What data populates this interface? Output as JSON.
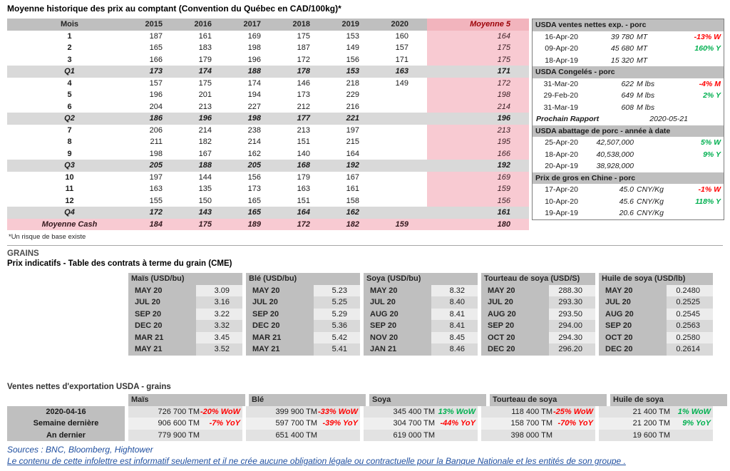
{
  "colors": {
    "header_gray": "#bfbfbf",
    "band_gray": "#d9d9d9",
    "pink_column": "#f8cad2",
    "pink_header": "#f2b4bd",
    "negative_red": "#ff0000",
    "positive_green": "#00b050",
    "footer_blue": "#1f4fa0"
  },
  "spot_prices": {
    "title": "Moyenne historique des prix au comptant (Convention du Québec en CAD/100kg)*",
    "footnote": "*Un risque de base existe",
    "headers": [
      "Mois",
      "2015",
      "2016",
      "2017",
      "2018",
      "2019",
      "2020",
      "Moyenne 5"
    ],
    "rows": [
      {
        "type": "month",
        "label": "1",
        "values": [
          "187",
          "161",
          "169",
          "175",
          "153",
          "160",
          "164"
        ]
      },
      {
        "type": "month",
        "label": "2",
        "values": [
          "165",
          "183",
          "198",
          "187",
          "149",
          "157",
          "175"
        ]
      },
      {
        "type": "month",
        "label": "3",
        "values": [
          "166",
          "179",
          "196",
          "172",
          "156",
          "171",
          "175"
        ]
      },
      {
        "type": "quarter",
        "label": "Q1",
        "values": [
          "173",
          "174",
          "188",
          "178",
          "153",
          "163",
          "171"
        ]
      },
      {
        "type": "month",
        "label": "4",
        "values": [
          "157",
          "175",
          "174",
          "146",
          "218",
          "149",
          "172"
        ]
      },
      {
        "type": "month",
        "label": "5",
        "values": [
          "196",
          "201",
          "194",
          "173",
          "229",
          "",
          "198"
        ]
      },
      {
        "type": "month",
        "label": "6",
        "values": [
          "204",
          "213",
          "227",
          "212",
          "216",
          "",
          "214"
        ]
      },
      {
        "type": "quarter",
        "label": "Q2",
        "values": [
          "186",
          "196",
          "198",
          "177",
          "221",
          "",
          "196"
        ]
      },
      {
        "type": "month",
        "label": "7",
        "values": [
          "206",
          "214",
          "238",
          "213",
          "197",
          "",
          "213"
        ]
      },
      {
        "type": "month",
        "label": "8",
        "values": [
          "211",
          "182",
          "214",
          "151",
          "215",
          "",
          "195"
        ]
      },
      {
        "type": "month",
        "label": "9",
        "values": [
          "198",
          "167",
          "162",
          "140",
          "164",
          "",
          "166"
        ]
      },
      {
        "type": "quarter",
        "label": "Q3",
        "values": [
          "205",
          "188",
          "205",
          "168",
          "192",
          "",
          "192"
        ]
      },
      {
        "type": "month",
        "label": "10",
        "values": [
          "197",
          "144",
          "156",
          "179",
          "167",
          "",
          "169"
        ]
      },
      {
        "type": "month",
        "label": "11",
        "values": [
          "163",
          "135",
          "173",
          "163",
          "161",
          "",
          "159"
        ]
      },
      {
        "type": "month",
        "label": "12",
        "values": [
          "155",
          "150",
          "165",
          "151",
          "158",
          "",
          "156"
        ]
      },
      {
        "type": "quarter",
        "label": "Q4",
        "values": [
          "172",
          "143",
          "165",
          "164",
          "162",
          "",
          "161"
        ]
      },
      {
        "type": "summary",
        "label": "Moyenne Cash",
        "values": [
          "184",
          "175",
          "189",
          "172",
          "182",
          "159",
          "180"
        ]
      }
    ]
  },
  "usda_panel": {
    "sections": [
      {
        "type": "data",
        "title": "USDA ventes nettes exp. - porc",
        "rows": [
          {
            "date": "16-Apr-20",
            "value": "39 780",
            "unit": "MT",
            "change": "-13% W",
            "trend": "down"
          },
          {
            "date": "09-Apr-20",
            "value": "45 680",
            "unit": "MT",
            "change": "160% Y",
            "trend": "up"
          },
          {
            "date": "18-Apr-19",
            "value": "15 320",
            "unit": "MT",
            "change": "",
            "trend": ""
          }
        ]
      },
      {
        "type": "data",
        "title": "USDA Congelés - porc",
        "rows": [
          {
            "date": "31-Mar-20",
            "value": "622",
            "unit": "M lbs",
            "change": "-4% M",
            "trend": "down"
          },
          {
            "date": "29-Feb-20",
            "value": "649",
            "unit": "M lbs",
            "change": "2% Y",
            "trend": "up"
          },
          {
            "date": "31-Mar-19",
            "value": "608",
            "unit": "M lbs",
            "change": "",
            "trend": ""
          }
        ]
      },
      {
        "type": "report",
        "label": "Prochain Rapport",
        "value": "2020-05-21"
      },
      {
        "type": "data",
        "title": "USDA abattage de porc - année à date",
        "rows": [
          {
            "date": "25-Apr-20",
            "value": "42,507,000",
            "unit": "",
            "change": "5% W",
            "trend": "up"
          },
          {
            "date": "18-Apr-20",
            "value": "40,538,000",
            "unit": "",
            "change": "9% Y",
            "trend": "up"
          },
          {
            "date": "20-Apr-19",
            "value": "38,928,000",
            "unit": "",
            "change": "",
            "trend": ""
          }
        ]
      },
      {
        "type": "data",
        "title": "Prix de gros en Chine - porc",
        "rows": [
          {
            "date": "17-Apr-20",
            "value": "45.0",
            "unit": "CNY/Kg",
            "change": "-1% W",
            "trend": "down"
          },
          {
            "date": "10-Apr-20",
            "value": "45.6",
            "unit": "CNY/Kg",
            "change": "118% Y",
            "trend": "up"
          },
          {
            "date": "19-Apr-19",
            "value": "20.6",
            "unit": "CNY/Kg",
            "change": "",
            "trend": ""
          }
        ]
      }
    ]
  },
  "grains": {
    "section_title": "GRAINS",
    "futures_title": "Prix indicatifs - Table des contrats à terme du grain (CME)",
    "groups": [
      {
        "header": "Maïs (USD/bu)",
        "rows": [
          [
            "MAY 20",
            "3.09"
          ],
          [
            "JUL 20",
            "3.16"
          ],
          [
            "SEP 20",
            "3.22"
          ],
          [
            "DEC 20",
            "3.32"
          ],
          [
            "MAR 21",
            "3.45"
          ],
          [
            "MAY 21",
            "3.52"
          ]
        ]
      },
      {
        "header": "Blé (USD/bu)",
        "rows": [
          [
            "MAY 20",
            "5.23"
          ],
          [
            "JUL 20",
            "5.25"
          ],
          [
            "SEP 20",
            "5.29"
          ],
          [
            "DEC 20",
            "5.36"
          ],
          [
            "MAR 21",
            "5.42"
          ],
          [
            "MAY 21",
            "5.41"
          ]
        ]
      },
      {
        "header": "Soya (USD/bu)",
        "rows": [
          [
            "MAY 20",
            "8.32"
          ],
          [
            "JUL 20",
            "8.40"
          ],
          [
            "AUG 20",
            "8.41"
          ],
          [
            "SEP 20",
            "8.41"
          ],
          [
            "NOV 20",
            "8.45"
          ],
          [
            "JAN 21",
            "8.46"
          ]
        ]
      },
      {
        "header": "Tourteau de soya (USD/S)",
        "rows": [
          [
            "MAY 20",
            "288.30"
          ],
          [
            "JUL 20",
            "293.30"
          ],
          [
            "AUG 20",
            "293.50"
          ],
          [
            "SEP 20",
            "294.00"
          ],
          [
            "OCT 20",
            "294.30"
          ],
          [
            "DEC 20",
            "296.20"
          ]
        ]
      },
      {
        "header": "Huile de soya (USD/lb)",
        "rows": [
          [
            "MAY 20",
            "0.2480"
          ],
          [
            "JUL 20",
            "0.2525"
          ],
          [
            "AUG 20",
            "0.2545"
          ],
          [
            "SEP 20",
            "0.2563"
          ],
          [
            "OCT 20",
            "0.2580"
          ],
          [
            "DEC 20",
            "0.2614"
          ]
        ]
      }
    ]
  },
  "export_sales": {
    "title": "Ventes nettes d'exportation USDA - grains",
    "column_headers": [
      "Maïs",
      "Blé",
      "Soya",
      "Tourteau de soya",
      "Huile de soya"
    ],
    "rows": [
      {
        "label": "2020-04-16",
        "cells": [
          {
            "value": "726 700 TM",
            "change": "-20% WoW",
            "trend": "down"
          },
          {
            "value": "399 900 TM",
            "change": "-33% WoW",
            "trend": "down"
          },
          {
            "value": "345 400 TM",
            "change": "13% WoW",
            "trend": "up"
          },
          {
            "value": "118 400 TM",
            "change": "-25% WoW",
            "trend": "down"
          },
          {
            "value": "21 400 TM",
            "change": "1% WoW",
            "trend": "up"
          }
        ]
      },
      {
        "label": "Semaine dernière",
        "cells": [
          {
            "value": "906 600 TM",
            "change": "-7% YoY",
            "trend": "down"
          },
          {
            "value": "597 700 TM",
            "change": "-39% YoY",
            "trend": "down"
          },
          {
            "value": "304 700 TM",
            "change": "-44% YoY",
            "trend": "down"
          },
          {
            "value": "158 700 TM",
            "change": "-70% YoY",
            "trend": "down"
          },
          {
            "value": "21 200 TM",
            "change": "9% YoY",
            "trend": "up"
          }
        ]
      },
      {
        "label": "An dernier",
        "cells": [
          {
            "value": "779 900 TM",
            "change": "",
            "trend": ""
          },
          {
            "value": "651 400 TM",
            "change": "",
            "trend": ""
          },
          {
            "value": "619 000 TM",
            "change": "",
            "trend": ""
          },
          {
            "value": "398 000 TM",
            "change": "",
            "trend": ""
          },
          {
            "value": "19 600 TM",
            "change": "",
            "trend": ""
          }
        ]
      }
    ]
  },
  "footer": {
    "sources": "Sources : BNC, Bloomberg, Hightower",
    "disclaimer": "Le contenu de cette infolettre est informatif seulement et il ne crée aucune obligation légale ou contractuelle pour la Banque Nationale et les entités de son groupe ."
  }
}
